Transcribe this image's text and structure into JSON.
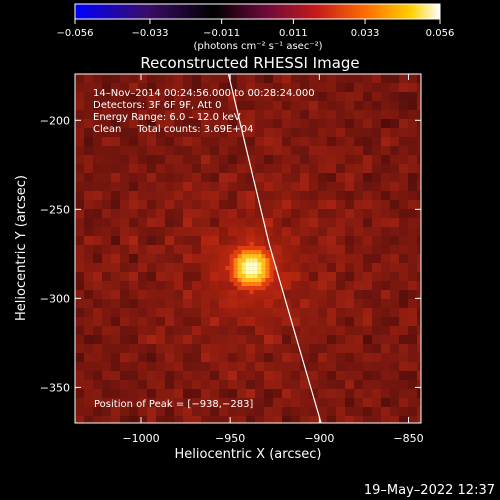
{
  "chart_data": {
    "type": "heatmap",
    "title": "Reconstructed RHESSI Image",
    "xlabel": "Heliocentric X (arcsec)",
    "ylabel": "Heliocentric Y (arcsec)",
    "xlim": [
      -1037,
      -843
    ],
    "ylim": [
      -370,
      -174
    ],
    "x_ticks": [
      {
        "value": -1000,
        "label": "−1000"
      },
      {
        "value": -950,
        "label": "−950"
      },
      {
        "value": -900,
        "label": "−900"
      },
      {
        "value": -850,
        "label": "−850"
      }
    ],
    "y_ticks": [
      {
        "value": -200,
        "label": "−200"
      },
      {
        "value": -250,
        "label": "−250"
      },
      {
        "value": -300,
        "label": "−300"
      },
      {
        "value": -350,
        "label": "−350"
      }
    ],
    "colorbar": {
      "min": -0.056,
      "max": 0.056,
      "ticks": [
        {
          "value": -0.056,
          "label": "−0.056"
        },
        {
          "value": -0.033,
          "label": "−0.033"
        },
        {
          "value": -0.011,
          "label": "−0.011"
        },
        {
          "value": 0.011,
          "label": "0.011"
        },
        {
          "value": 0.033,
          "label": "0.033"
        },
        {
          "value": 0.056,
          "label": "0.056"
        }
      ],
      "units_label": "(photons cm⁻² s⁻¹ asec⁻²)",
      "colors": [
        "#0000ff",
        "#3a0d66",
        "#000000",
        "#6a0a3a",
        "#c41a1a",
        "#ff7000",
        "#ffd000",
        "#ffffff"
      ]
    },
    "source_peak": {
      "x": -938,
      "y": -283,
      "intensity": 0.056
    },
    "limb_curve": [
      {
        "x": -951,
        "y": -174
      },
      {
        "x": -940,
        "y": -220
      },
      {
        "x": -928,
        "y": -270
      },
      {
        "x": -915,
        "y": -315
      },
      {
        "x": -899,
        "y": -370
      }
    ],
    "info_lines": [
      "14–Nov–2014 00:24:56.000 to 00:28:24.000",
      "Detectors: 3F 6F 9F, Att 0",
      "Energy Range: 6.0 – 12.0 keV",
      "Clean     Total counts: 3.69E+04"
    ],
    "peak_label": "Position of Peak = [−938,−283]",
    "timestamp": "19–May–2022 12:37"
  }
}
